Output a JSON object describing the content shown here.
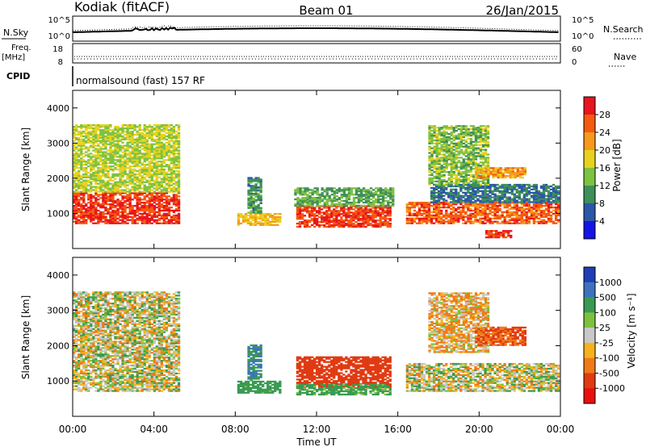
{
  "header": {
    "station": "Kodiak (fitACF)",
    "beam": "Beam 01",
    "date": "26/Jan/2015"
  },
  "top_panels": {
    "noise_label": "N.Sky",
    "noise_left_ticks": [
      "10^5",
      "10^0"
    ],
    "noise_right_ticks": [
      "10^5",
      "10^0"
    ],
    "noise_right_label": "N.Search",
    "freq_label_1": "Freq.",
    "freq_label_2": "[MHz]",
    "freq_ticks": [
      "18",
      "8"
    ],
    "nave_ticks": [
      "60",
      "0"
    ],
    "nave_label": "Nave",
    "cpid_label": "CPID",
    "cpid_text": "normalsound (fast) 157 RF"
  },
  "power_panel": {
    "ylabel": "Slant Range [km]",
    "colorbar_label": "Power [dB]",
    "colorbar_ticks": [
      "28",
      "24",
      "20",
      "16",
      "12",
      "8",
      "4"
    ],
    "colorbar_colors": [
      "#e8141e",
      "#f55a0f",
      "#f79a1c",
      "#e8d21f",
      "#7ec242",
      "#3f8f5a",
      "#2b57a8",
      "#1414e6"
    ]
  },
  "velocity_panel": {
    "ylabel": "Slant Range [km]",
    "colorbar_label": "Velocity [m s⁻¹]",
    "colorbar_ticks": [
      "1000",
      "500",
      "100",
      "25",
      "-25",
      "-100",
      "-500",
      "-1000"
    ],
    "colorbar_colors": [
      "#1f3fb4",
      "#3d73bd",
      "#3a9a52",
      "#7cc23e",
      "#c8c8c8",
      "#f5b21c",
      "#f07a18",
      "#e03a12",
      "#e80f0f"
    ]
  },
  "xaxis": {
    "label": "Time UT",
    "ticks": [
      "00:00",
      "04:00",
      "08:00",
      "12:00",
      "16:00",
      "20:00",
      "00:00"
    ]
  },
  "chart_data": {
    "type": "heatmap",
    "x_unit": "hours UT",
    "xlim": [
      0,
      24
    ],
    "y_unit": "km",
    "ylim": [
      0,
      4500
    ],
    "yticks": [
      1000,
      2000,
      3000,
      4000
    ],
    "power_echo_regions": [
      {
        "start": 0.0,
        "end": 5.2,
        "lo": 700,
        "hi": 1600,
        "db": 28
      },
      {
        "start": 0.0,
        "end": 5.2,
        "lo": 1600,
        "hi": 3500,
        "db": 16
      },
      {
        "start": 8.1,
        "end": 10.2,
        "lo": 650,
        "hi": 1000,
        "db": 20
      },
      {
        "start": 8.6,
        "end": 9.3,
        "lo": 1000,
        "hi": 2000,
        "db": 10
      },
      {
        "start": 11.0,
        "end": 15.6,
        "lo": 600,
        "hi": 1200,
        "db": 28
      },
      {
        "start": 10.9,
        "end": 15.8,
        "lo": 1200,
        "hi": 1700,
        "db": 12
      },
      {
        "start": 16.4,
        "end": 23.9,
        "lo": 700,
        "hi": 1300,
        "db": 26
      },
      {
        "start": 17.6,
        "end": 23.9,
        "lo": 1300,
        "hi": 1800,
        "db": 8
      },
      {
        "start": 17.5,
        "end": 20.5,
        "lo": 1800,
        "hi": 3500,
        "db": 14
      },
      {
        "start": 19.8,
        "end": 22.3,
        "lo": 2000,
        "hi": 2300,
        "db": 22
      },
      {
        "start": 20.3,
        "end": 21.6,
        "lo": 300,
        "hi": 500,
        "db": 28
      }
    ],
    "velocity_echo_regions": [
      {
        "start": 0.0,
        "end": 5.2,
        "lo": 700,
        "hi": 1600,
        "v": 0
      },
      {
        "start": 0.0,
        "end": 5.2,
        "lo": 1600,
        "hi": 3500,
        "v": 0
      },
      {
        "start": 8.1,
        "end": 10.2,
        "lo": 650,
        "hi": 1000,
        "v": 150
      },
      {
        "start": 8.6,
        "end": 9.3,
        "lo": 1000,
        "hi": 2000,
        "v": 300
      },
      {
        "start": 11.0,
        "end": 15.6,
        "lo": 800,
        "hi": 1700,
        "v": -400
      },
      {
        "start": 11.0,
        "end": 15.6,
        "lo": 600,
        "hi": 900,
        "v": 120
      },
      {
        "start": 16.4,
        "end": 23.9,
        "lo": 700,
        "hi": 1500,
        "v": 0
      },
      {
        "start": 17.5,
        "end": 20.5,
        "lo": 1800,
        "hi": 3500,
        "v": -50
      },
      {
        "start": 19.8,
        "end": 22.3,
        "lo": 2000,
        "hi": 2500,
        "v": -300
      }
    ]
  }
}
